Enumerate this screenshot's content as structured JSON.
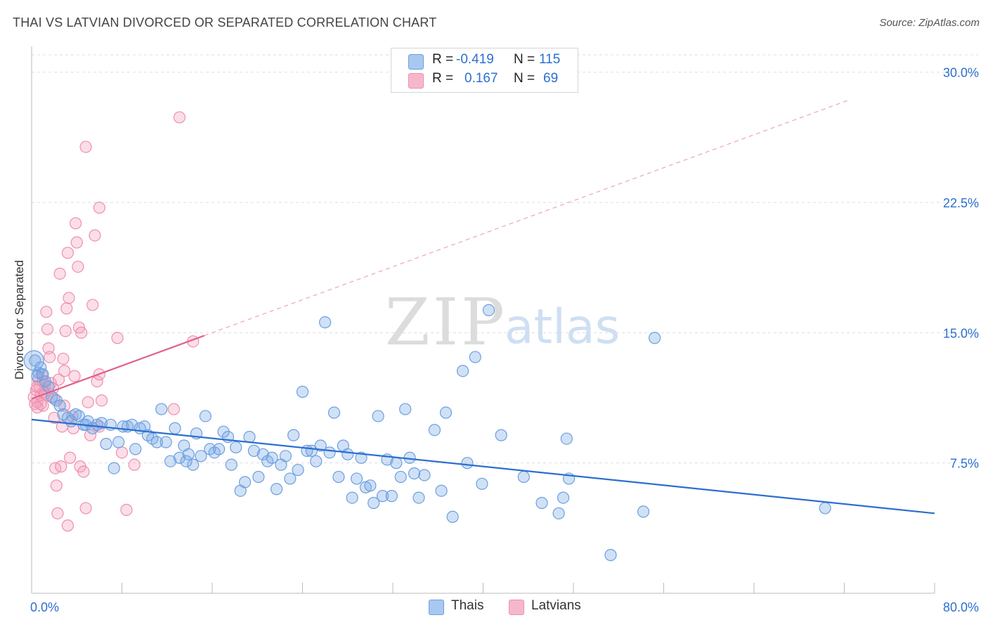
{
  "title": "THAI VS LATVIAN DIVORCED OR SEPARATED CORRELATION CHART",
  "source": "Source: ZipAtlas.com",
  "watermark": {
    "zip": "ZIP",
    "atlas": "atlas"
  },
  "legend": {
    "rows": [
      {
        "r_label": "R =",
        "r_value": "-0.419",
        "n_label": "N =",
        "n_value": "115",
        "color": "#a9c8f0"
      },
      {
        "r_label": "R =",
        "r_value": "0.167",
        "n_label": "N =",
        "n_value": "69",
        "color": "#f5b8cb"
      }
    ]
  },
  "bottom_legend": [
    {
      "label": "Thais",
      "color": "#a9c8f0"
    },
    {
      "label": "Latvians",
      "color": "#f5b8cb"
    }
  ],
  "colors": {
    "thais_fill": "rgba(120,168,230,0.35)",
    "thais_stroke": "#6c9fe0",
    "latvians_fill": "rgba(243,160,186,0.35)",
    "latvians_stroke": "#ee8fae",
    "thais_trend": "#2c6fcf",
    "latvians_trend": "#e0608c",
    "axis_text": "#2c6fcf",
    "grid": "#dddddd"
  },
  "chart_data": {
    "type": "scatter",
    "title": "THAI VS LATVIAN DIVORCED OR SEPARATED CORRELATION CHART",
    "xlabel": "",
    "ylabel": "Divorced or Separated",
    "xlim": [
      0,
      80
    ],
    "ylim": [
      0,
      31
    ],
    "x_tick_labels": [
      "0.0%",
      "80.0%"
    ],
    "y_ticks": [
      7.5,
      15.0,
      22.5,
      30.0
    ],
    "y_tick_labels": [
      "7.5%",
      "15.0%",
      "22.5%",
      "30.0%"
    ],
    "grid": true,
    "legend_position": "top-center",
    "series": [
      {
        "name": "Thais",
        "r": -0.419,
        "n": 115,
        "trend": {
          "x": [
            0,
            80
          ],
          "y": [
            10.0,
            4.6
          ]
        },
        "points": [
          [
            0.3,
            13.4
          ],
          [
            0.6,
            12.7
          ],
          [
            0.8,
            13.0
          ],
          [
            1.0,
            12.6
          ],
          [
            1.2,
            12.2
          ],
          [
            1.5,
            11.9
          ],
          [
            1.8,
            11.3
          ],
          [
            2.2,
            11.1
          ],
          [
            2.5,
            10.8
          ],
          [
            2.8,
            10.3
          ],
          [
            3.2,
            10.1
          ],
          [
            3.5,
            9.9
          ],
          [
            3.9,
            10.3
          ],
          [
            4.2,
            10.2
          ],
          [
            4.6,
            9.7
          ],
          [
            5.0,
            9.9
          ],
          [
            5.4,
            9.5
          ],
          [
            5.8,
            9.7
          ],
          [
            6.2,
            9.8
          ],
          [
            6.6,
            8.6
          ],
          [
            7.0,
            9.7
          ],
          [
            7.3,
            7.2
          ],
          [
            7.7,
            8.7
          ],
          [
            8.1,
            9.6
          ],
          [
            8.5,
            9.6
          ],
          [
            8.9,
            9.7
          ],
          [
            9.2,
            8.3
          ],
          [
            9.6,
            9.5
          ],
          [
            10.0,
            9.6
          ],
          [
            10.3,
            9.1
          ],
          [
            10.7,
            8.9
          ],
          [
            11.1,
            8.7
          ],
          [
            11.5,
            10.6
          ],
          [
            11.9,
            8.7
          ],
          [
            12.3,
            7.6
          ],
          [
            12.7,
            9.5
          ],
          [
            13.1,
            7.8
          ],
          [
            13.5,
            8.5
          ],
          [
            13.9,
            8.0
          ],
          [
            14.3,
            7.4
          ],
          [
            14.6,
            9.2
          ],
          [
            15.0,
            7.9
          ],
          [
            15.4,
            10.2
          ],
          [
            15.8,
            8.3
          ],
          [
            16.2,
            8.1
          ],
          [
            16.6,
            8.3
          ],
          [
            17.0,
            9.3
          ],
          [
            17.4,
            9.0
          ],
          [
            17.7,
            7.4
          ],
          [
            18.1,
            8.4
          ],
          [
            18.5,
            5.9
          ],
          [
            18.9,
            6.4
          ],
          [
            19.3,
            9.0
          ],
          [
            19.7,
            8.2
          ],
          [
            20.1,
            6.7
          ],
          [
            20.5,
            8.0
          ],
          [
            20.9,
            7.6
          ],
          [
            21.3,
            7.8
          ],
          [
            21.7,
            6.0
          ],
          [
            22.1,
            7.4
          ],
          [
            22.5,
            7.9
          ],
          [
            22.9,
            6.6
          ],
          [
            23.2,
            9.1
          ],
          [
            23.6,
            7.1
          ],
          [
            24.0,
            11.6
          ],
          [
            24.4,
            8.2
          ],
          [
            24.8,
            8.2
          ],
          [
            25.2,
            7.6
          ],
          [
            25.6,
            8.5
          ],
          [
            26.0,
            15.6
          ],
          [
            26.4,
            8.1
          ],
          [
            26.8,
            10.4
          ],
          [
            27.2,
            6.7
          ],
          [
            27.6,
            8.5
          ],
          [
            28.0,
            8.0
          ],
          [
            28.4,
            5.5
          ],
          [
            28.8,
            6.6
          ],
          [
            29.2,
            7.8
          ],
          [
            29.6,
            6.1
          ],
          [
            30.0,
            6.2
          ],
          [
            30.3,
            5.2
          ],
          [
            30.7,
            10.2
          ],
          [
            31.1,
            5.6
          ],
          [
            31.5,
            7.7
          ],
          [
            31.9,
            5.6
          ],
          [
            32.3,
            7.5
          ],
          [
            32.7,
            6.7
          ],
          [
            33.1,
            10.6
          ],
          [
            33.5,
            7.8
          ],
          [
            33.9,
            6.9
          ],
          [
            34.3,
            5.5
          ],
          [
            34.8,
            6.8
          ],
          [
            35.7,
            9.4
          ],
          [
            36.3,
            5.9
          ],
          [
            36.7,
            10.4
          ],
          [
            37.3,
            4.4
          ],
          [
            38.2,
            12.8
          ],
          [
            38.6,
            7.5
          ],
          [
            39.3,
            13.6
          ],
          [
            39.9,
            6.3
          ],
          [
            40.5,
            16.3
          ],
          [
            41.6,
            9.1
          ],
          [
            43.6,
            6.7
          ],
          [
            45.2,
            5.2
          ],
          [
            46.7,
            4.6
          ],
          [
            47.1,
            5.5
          ],
          [
            47.4,
            8.9
          ],
          [
            47.6,
            6.6
          ],
          [
            51.3,
            2.2
          ],
          [
            54.2,
            4.7
          ],
          [
            55.2,
            14.7
          ],
          [
            70.3,
            4.9
          ],
          [
            0.5,
            12.5
          ],
          [
            4.8,
            9.7
          ],
          [
            13.7,
            7.6
          ]
        ]
      },
      {
        "name": "Latvians",
        "r": 0.167,
        "n": 69,
        "trend": {
          "x": [
            0,
            80
          ],
          "y": [
            11.2,
            30.2
          ],
          "solid_until_x": 15.3
        },
        "points": [
          [
            0.2,
            11.3
          ],
          [
            0.3,
            10.9
          ],
          [
            0.4,
            11.7
          ],
          [
            0.5,
            11.0
          ],
          [
            0.6,
            12.3
          ],
          [
            0.7,
            11.9
          ],
          [
            0.8,
            11.4
          ],
          [
            0.9,
            12.6
          ],
          [
            1.0,
            10.8
          ],
          [
            1.1,
            11.6
          ],
          [
            1.2,
            12.0
          ],
          [
            1.3,
            16.2
          ],
          [
            1.4,
            15.2
          ],
          [
            1.5,
            14.1
          ],
          [
            1.6,
            13.6
          ],
          [
            1.7,
            12.1
          ],
          [
            1.9,
            11.8
          ],
          [
            2.0,
            10.1
          ],
          [
            2.1,
            7.2
          ],
          [
            2.2,
            6.2
          ],
          [
            2.3,
            4.6
          ],
          [
            2.4,
            12.3
          ],
          [
            2.5,
            18.4
          ],
          [
            2.6,
            7.3
          ],
          [
            2.7,
            9.6
          ],
          [
            2.8,
            13.5
          ],
          [
            2.9,
            12.8
          ],
          [
            3.0,
            15.1
          ],
          [
            3.1,
            16.4
          ],
          [
            3.2,
            19.6
          ],
          [
            3.3,
            17.0
          ],
          [
            3.4,
            7.8
          ],
          [
            3.6,
            10.2
          ],
          [
            3.7,
            9.5
          ],
          [
            3.8,
            12.5
          ],
          [
            3.9,
            21.3
          ],
          [
            4.0,
            20.2
          ],
          [
            4.1,
            18.8
          ],
          [
            4.2,
            15.3
          ],
          [
            4.3,
            7.3
          ],
          [
            4.4,
            15.0
          ],
          [
            4.6,
            7.0
          ],
          [
            4.8,
            4.9
          ],
          [
            5.0,
            11.0
          ],
          [
            5.2,
            9.1
          ],
          [
            5.4,
            16.6
          ],
          [
            5.6,
            20.6
          ],
          [
            5.8,
            12.2
          ],
          [
            6.0,
            22.2
          ],
          [
            6.2,
            11.1
          ],
          [
            7.6,
            14.7
          ],
          [
            8.4,
            4.8
          ],
          [
            9.1,
            7.4
          ],
          [
            12.6,
            10.6
          ],
          [
            13.1,
            27.4
          ],
          [
            14.3,
            14.5
          ],
          [
            4.8,
            25.7
          ],
          [
            1.2,
            11.5
          ],
          [
            2.0,
            11.2
          ],
          [
            2.9,
            10.8
          ],
          [
            6.0,
            12.6
          ],
          [
            6.0,
            9.6
          ],
          [
            3.2,
            3.9
          ],
          [
            0.8,
            10.9
          ],
          [
            0.5,
            11.9
          ],
          [
            0.5,
            10.7
          ],
          [
            1.0,
            12.2
          ],
          [
            1.4,
            11.4
          ],
          [
            8.0,
            8.1
          ]
        ]
      }
    ]
  }
}
